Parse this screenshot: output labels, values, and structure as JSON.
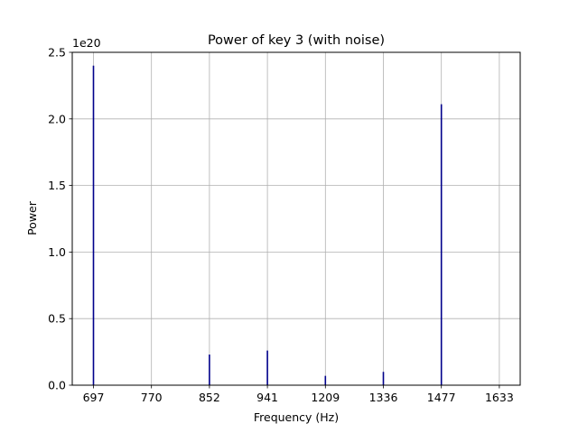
{
  "chart_data": {
    "type": "bar",
    "title": "Power of key 3 (with noise)",
    "xlabel": "Frequency (Hz)",
    "ylabel": "Power",
    "y_offset_label": "1e20",
    "ylim": [
      0,
      2.5
    ],
    "y_ticks": [
      0.0,
      0.5,
      1.0,
      1.5,
      2.0,
      2.5
    ],
    "y_tick_labels": [
      "0.0",
      "0.5",
      "1.0",
      "1.5",
      "2.0",
      "2.5"
    ],
    "x_ticks": [
      "697",
      "770",
      "852",
      "941",
      "1209",
      "1336",
      "1477",
      "1633"
    ],
    "grid": true,
    "legend": "none",
    "bar_color": "#00008b",
    "categories": [
      "697",
      "770",
      "852",
      "941",
      "1209",
      "1336",
      "1477",
      "1633"
    ],
    "values": [
      2.4,
      0.0,
      0.23,
      0.26,
      0.07,
      0.1,
      2.11,
      0.0
    ]
  }
}
